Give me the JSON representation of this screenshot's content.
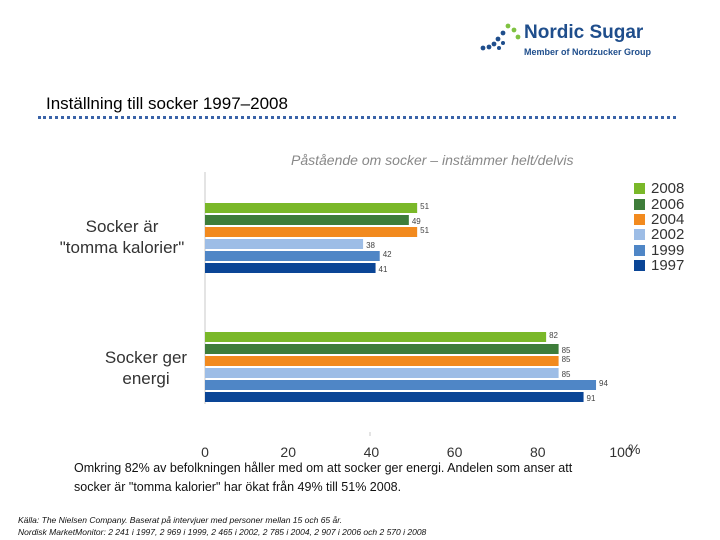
{
  "logo": {
    "name": "Nordic Sugar",
    "tagline": "Member of Nordzucker Group",
    "colors": {
      "text": "#1f4e8c",
      "dots_dark": "#1f4e8c",
      "dots_light": "#7fc241"
    }
  },
  "page_title": "Inställning till socker 1997–2008",
  "chart_data": {
    "type": "bar",
    "orientation": "horizontal",
    "title": "Påstående om socker – instämmer helt/delvis",
    "categories": [
      "Socker är\n\"tomma kalorier\"",
      "Socker ger\nenergi"
    ],
    "series": [
      {
        "name": "2008",
        "values": [
          51,
          82
        ],
        "color": "#7ab829"
      },
      {
        "name": "2006",
        "values": [
          49,
          85
        ],
        "color": "#3e7d3a"
      },
      {
        "name": "2004",
        "values": [
          51,
          85
        ],
        "color": "#f28a1e"
      },
      {
        "name": "2002",
        "values": [
          38,
          85
        ],
        "color": "#9dbde6"
      },
      {
        "name": "1999",
        "values": [
          42,
          94
        ],
        "color": "#4f86c6"
      },
      {
        "name": "1997",
        "values": [
          41,
          91
        ],
        "color": "#0a4596"
      }
    ],
    "xlim": [
      0,
      100
    ],
    "xticks": [
      "0",
      "20",
      "40",
      "60",
      "80",
      "100"
    ],
    "x_unit": "%",
    "grid": false,
    "legend_position": "right"
  },
  "note": "Omkring 82% av befolkningen håller med om att socker ger energi. Andelen som anser att socker är \"tomma kalorier\" har ökat från 49% till 51% 2008.",
  "source": {
    "line1": "Källa: The Nielsen Company. Baserat på intervjuer med personer mellan 15 och 65 år.",
    "line2": "Nordisk MarketMonitor: 2 241 i 1997, 2 969 i 1999, 2 465 i 2002, 2 785 i 2004, 2 907 i 2006 och 2 570 i 2008"
  }
}
